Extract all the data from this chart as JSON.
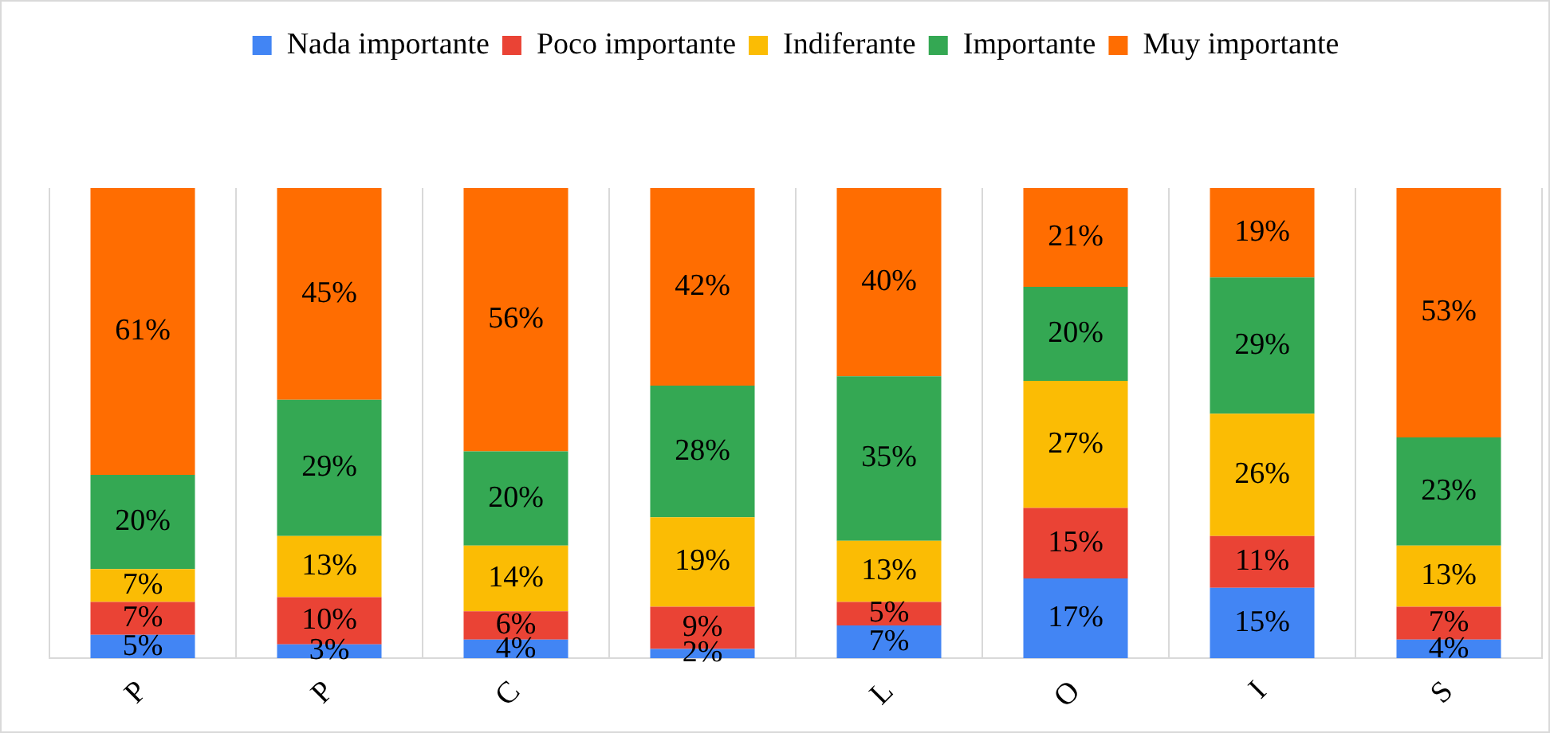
{
  "chart_data": {
    "type": "bar",
    "stacked": true,
    "categories": [
      "P",
      "P",
      "C",
      null,
      "L",
      "O",
      "I",
      "S"
    ],
    "series": [
      {
        "name": "Nada importante",
        "color": "#4285f4",
        "values": [
          5,
          3,
          4,
          2,
          7,
          17,
          15,
          4
        ],
        "value_labels": [
          "5%",
          "3%",
          "4%",
          "2%",
          "7%",
          "17%",
          "15%",
          "4%"
        ]
      },
      {
        "name": "Poco importante",
        "color": "#ea4335",
        "values": [
          7,
          10,
          6,
          9,
          5,
          15,
          11,
          7
        ],
        "value_labels": [
          "7%",
          "10%",
          "6%",
          "9%",
          "5%",
          "15%",
          "11%",
          "7%"
        ]
      },
      {
        "name": "Indiferante",
        "color": "#fbbc04",
        "values": [
          7,
          13,
          14,
          19,
          13,
          27,
          26,
          13
        ],
        "value_labels": [
          "7%",
          "13%",
          "14%",
          "19%",
          "13%",
          "27%",
          "26%",
          "13%"
        ]
      },
      {
        "name": "Importante",
        "color": "#34a853",
        "values": [
          20,
          29,
          20,
          28,
          35,
          20,
          29,
          23
        ],
        "value_labels": [
          "20%",
          "29%",
          "20%",
          "28%",
          "35%",
          "20%",
          "29%",
          "23%"
        ]
      },
      {
        "name": "Muy importante",
        "color": "#ff6d01",
        "values": [
          61,
          45,
          56,
          42,
          40,
          21,
          19,
          53
        ],
        "value_labels": [
          "61%",
          "45%",
          "56%",
          "42%",
          "40%",
          "21%",
          "19%",
          "53%"
        ]
      }
    ],
    "ylim": [
      0,
      100
    ],
    "grid": "x",
    "legend": "top",
    "tick_labels": "x"
  }
}
